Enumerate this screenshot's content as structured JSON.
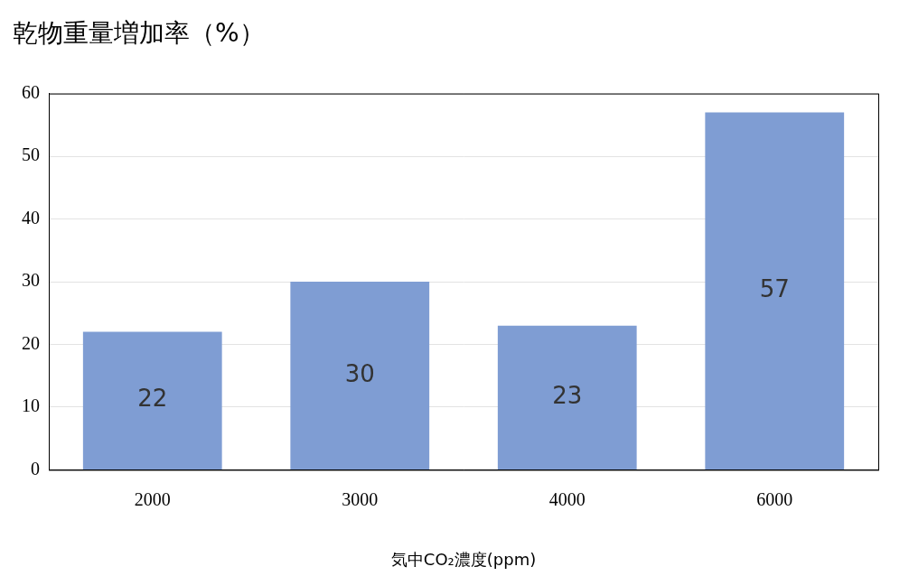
{
  "chart_data": {
    "type": "bar",
    "title": "乾物重量増加率（%）",
    "x_label": "気中CO₂濃度(ppm)",
    "categories": [
      "2000",
      "3000",
      "4000",
      "6000"
    ],
    "values": [
      22,
      30,
      23,
      57
    ],
    "color": "#7f9dd3",
    "ylim": [
      0,
      60
    ],
    "yticks": [
      0,
      10,
      20,
      30,
      40,
      50,
      60
    ],
    "grid": true,
    "data_labels": true
  }
}
